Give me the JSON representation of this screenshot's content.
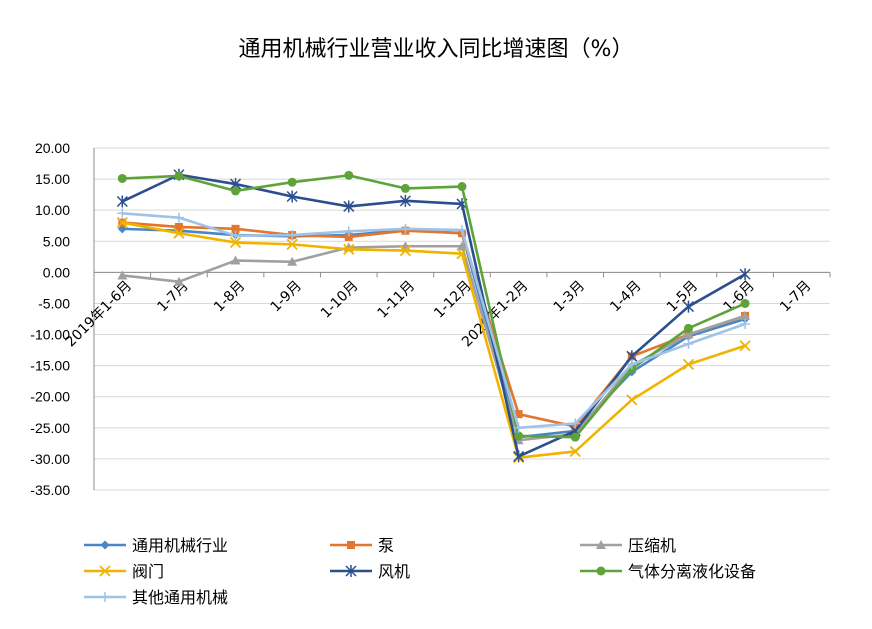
{
  "chart_data": {
    "type": "line",
    "title": "通用机械行业营业收入同比增速图（%）",
    "xlabel": "",
    "ylabel": "",
    "ylim": [
      -35,
      20
    ],
    "ytick_step": 5,
    "ytick_labels": [
      "20.00",
      "15.00",
      "10.00",
      "5.00",
      "0.00",
      "-5.00",
      "-10.00",
      "-15.00",
      "-20.00",
      "-25.00",
      "-30.00",
      "-35.00"
    ],
    "grid": true,
    "legend_position": "bottom",
    "categories": [
      "2019年1-6月",
      "1-7月",
      "1-8月",
      "1-9月",
      "1-10月",
      "1-11月",
      "1-12月",
      "2020年1-2月",
      "1-3月",
      "1-4月",
      "1-5月",
      "1-6月",
      "1-7月"
    ],
    "series": [
      {
        "name": "通用机械行业",
        "color": "#4a86c5",
        "marker": "diamond",
        "values": [
          7.0,
          6.7,
          6.0,
          5.8,
          6.0,
          6.8,
          6.3,
          -26.5,
          -25.5,
          -16.0,
          -10.3,
          -7.5,
          null
        ]
      },
      {
        "name": "泵",
        "color": "#e2762d",
        "marker": "square",
        "values": [
          8.0,
          7.3,
          7.0,
          6.0,
          5.7,
          6.7,
          6.3,
          -22.8,
          -24.8,
          -13.5,
          -10.0,
          -7.0,
          null
        ]
      },
      {
        "name": "压缩机",
        "color": "#a0a0a0",
        "marker": "triangle",
        "values": [
          -0.5,
          -1.5,
          1.9,
          1.7,
          4.0,
          4.2,
          4.2,
          -27.0,
          -26.0,
          -15.0,
          -10.0,
          -7.0,
          null
        ]
      },
      {
        "name": "阀门",
        "color": "#f0b400",
        "marker": "x",
        "values": [
          8.0,
          6.3,
          4.8,
          4.5,
          3.7,
          3.5,
          3.0,
          -29.8,
          -28.8,
          -20.5,
          -14.8,
          -11.8,
          null
        ]
      },
      {
        "name": "风机",
        "color": "#2c4f8e",
        "marker": "star",
        "values": [
          11.4,
          15.7,
          14.2,
          12.2,
          10.6,
          11.5,
          11.0,
          -29.6,
          -25.5,
          -13.5,
          -5.5,
          -0.3,
          null
        ]
      },
      {
        "name": "气体分离液化设备",
        "color": "#5ea33a",
        "marker": "circle",
        "values": [
          15.1,
          15.5,
          13.1,
          14.5,
          15.6,
          13.5,
          13.8,
          -26.3,
          -26.5,
          -15.5,
          -9.0,
          -5.0,
          null
        ]
      },
      {
        "name": "其他通用机械",
        "color": "#9fc3e6",
        "marker": "plus",
        "values": [
          9.5,
          8.8,
          5.9,
          6.0,
          6.6,
          7.0,
          6.8,
          -25.0,
          -24.3,
          -14.8,
          -11.5,
          -8.3,
          null
        ]
      }
    ]
  }
}
